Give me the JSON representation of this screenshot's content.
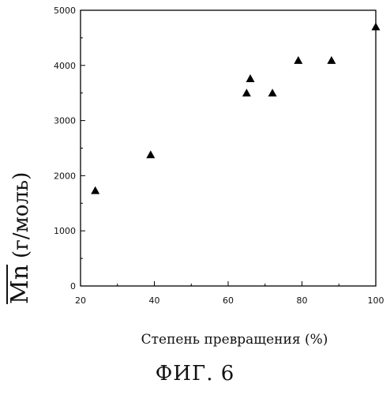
{
  "chart_data": {
    "type": "scatter",
    "title": "",
    "xlabel": "Степень превращения (%)",
    "ylabel_symbol": "Mn",
    "ylabel_unit": "(г/моль)",
    "xlim": [
      20,
      100
    ],
    "ylim": [
      0,
      5000
    ],
    "xticks": [
      20,
      40,
      60,
      80,
      100
    ],
    "yticks": [
      0,
      1000,
      2000,
      3000,
      4000,
      5000
    ],
    "marker": "triangle",
    "grid": false,
    "points": [
      {
        "x": 24,
        "y": 1730
      },
      {
        "x": 39,
        "y": 2380
      },
      {
        "x": 65,
        "y": 3500
      },
      {
        "x": 66,
        "y": 3760
      },
      {
        "x": 72,
        "y": 3500
      },
      {
        "x": 79,
        "y": 4090
      },
      {
        "x": 88,
        "y": 4090
      },
      {
        "x": 100,
        "y": 4700
      }
    ]
  },
  "caption": "ФИГ. 6"
}
